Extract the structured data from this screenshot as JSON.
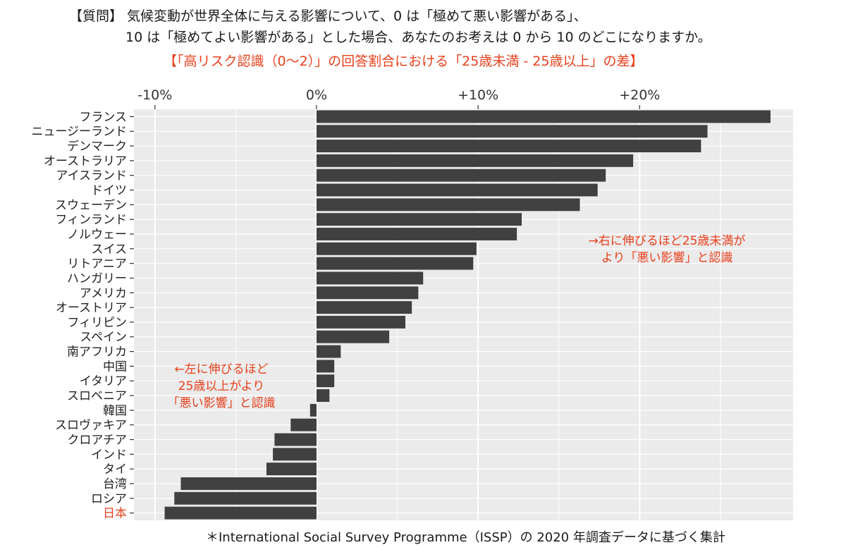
{
  "title_line1": "【質問】 気候変動が世界全体に与える影響について、0 は「極めて悪い影響がある」、",
  "title_line2": "10 は「極めてよい影響がある」とした場合、あなたのお考えは 0 から 10 のどこになりますか。",
  "subtitle": "【「高リスク認識（0～2）」の回答割合における「25歳未満 - 25歳以上」の差】",
  "annotation_right": "→右に伸びるほど25歳未満が\nより「悪い影響」と認識",
  "annotation_left": "←左に伸びるほど\n25歳以上がより\n「悪い影響」と認識",
  "footnote": "＊International Social Survey Programme（ISSP）の 2020 年調査データに基づく集計",
  "colors": {
    "bar": "#404040",
    "panel": "#ebebeb",
    "grid": "#ffffff",
    "highlight": "#e8401c",
    "text": "#1a1a1a"
  },
  "chart_data": {
    "type": "bar",
    "orientation": "horizontal",
    "x_unit": "%",
    "xlim": [
      -11.3,
      29.5
    ],
    "x_ticks": [
      -10,
      0,
      10,
      20
    ],
    "x_tick_labels": [
      "-10%",
      "0%",
      "+10%",
      "+20%"
    ],
    "x_axis_position": "top",
    "grid": true,
    "highlight_category": "日本",
    "categories": [
      "フランス",
      "ニュージーランド",
      "デンマーク",
      "オーストラリア",
      "アイスランド",
      "ドイツ",
      "スウェーデン",
      "フィンランド",
      "ノルウェー",
      "スイス",
      "リトアニア",
      "ハンガリー",
      "アメリカ",
      "オーストリア",
      "フィリピン",
      "スペイン",
      "南アフリカ",
      "中国",
      "イタリア",
      "スロベニア",
      "韓国",
      "スロヴァキア",
      "クロアチア",
      "インド",
      "タイ",
      "台湾",
      "ロシア",
      "日本"
    ],
    "values": [
      28.1,
      24.2,
      23.8,
      19.6,
      17.9,
      17.4,
      16.3,
      12.7,
      12.4,
      9.9,
      9.7,
      6.6,
      6.3,
      5.9,
      5.5,
      4.5,
      1.5,
      1.1,
      1.1,
      0.8,
      -0.4,
      -1.6,
      -2.6,
      -2.7,
      -3.1,
      -8.4,
      -8.8,
      -9.4
    ]
  }
}
